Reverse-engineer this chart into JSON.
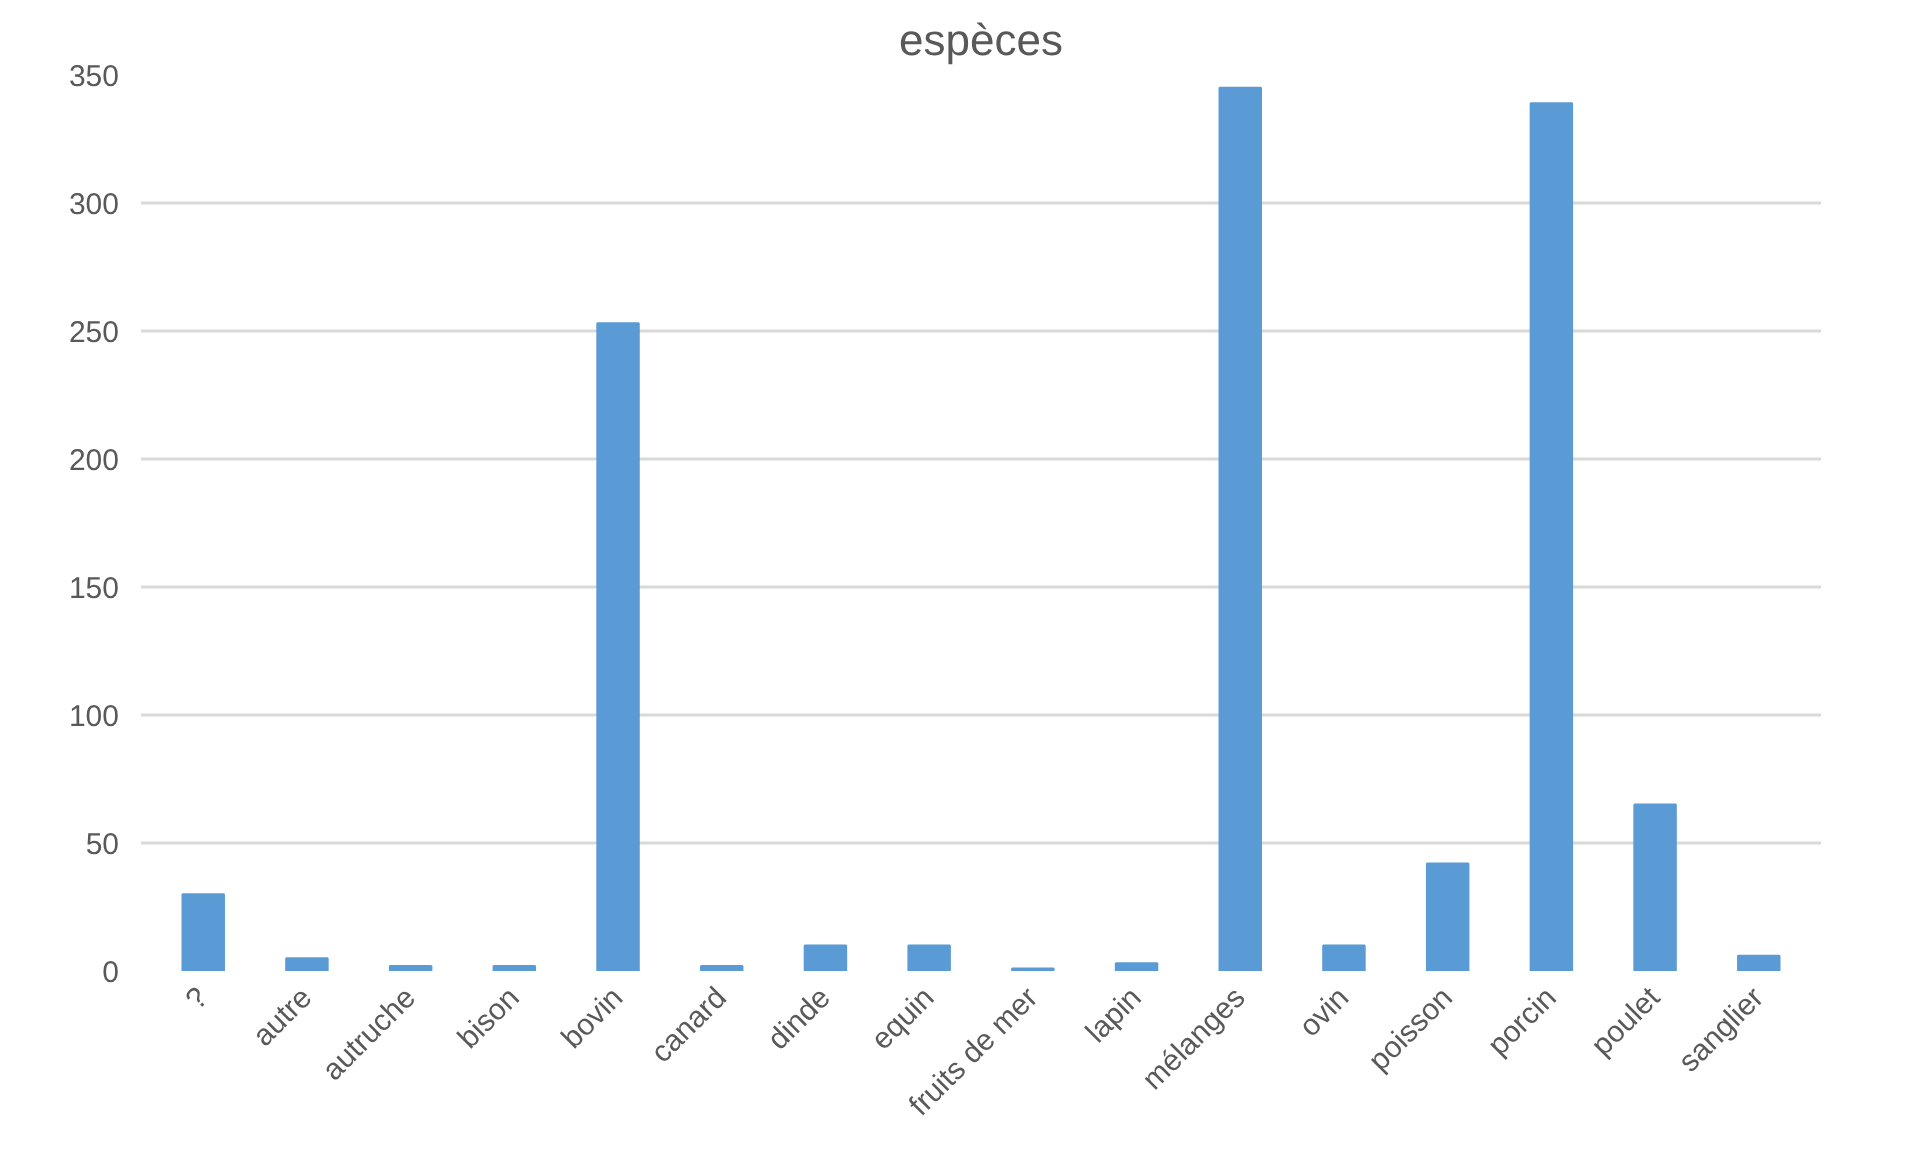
{
  "chart_data": {
    "type": "bar",
    "title": "espèces",
    "categories": [
      "?",
      "autre",
      "autruche",
      "bison",
      "bovin",
      "canard",
      "dinde",
      "equin",
      "fruits de mer",
      "lapin",
      "mélanges",
      "ovin",
      "poisson",
      "porcin",
      "poulet",
      "sanglier"
    ],
    "values": [
      30,
      5,
      2,
      2,
      253,
      2,
      10,
      10,
      1,
      3,
      345,
      10,
      42,
      339,
      65,
      6
    ],
    "color": "#5b9bd5",
    "ylim": [
      0,
      350
    ],
    "yticks": [
      0,
      50,
      100,
      150,
      200,
      250,
      300,
      350
    ],
    "grid": "y",
    "legend": false
  }
}
